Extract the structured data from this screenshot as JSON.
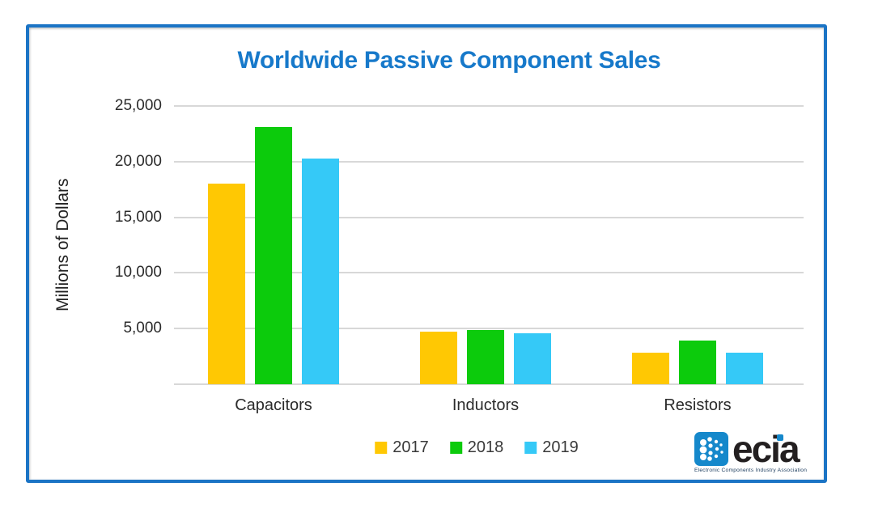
{
  "chart_data": {
    "type": "bar",
    "title": "Worldwide Passive Component Sales",
    "categories": [
      "Capacitors",
      "Inductors",
      "Resistors"
    ],
    "series": [
      {
        "name": "2017",
        "color": "#FFC803",
        "values": [
          18000,
          4700,
          2800
        ]
      },
      {
        "name": "2018",
        "color": "#0CCB0C",
        "values": [
          23100,
          4900,
          3900
        ]
      },
      {
        "name": "2019",
        "color": "#35C9F7",
        "values": [
          20300,
          4600,
          2800
        ]
      }
    ],
    "xlabel": "",
    "ylabel": "Millions of Dollars",
    "ylim": [
      0,
      25000
    ],
    "ytick_step": 5000,
    "ytick_labels": [
      "5,000",
      "10,000",
      "15,000",
      "20,000",
      "25,000"
    ],
    "grid": true,
    "legend_position": "bottom-center"
  },
  "logo": {
    "text": "ecia",
    "tagline": "Electronic Components Industry Association"
  },
  "colors": {
    "title_text": "#1779CA",
    "frame_border": "#1B74C5",
    "gridline": "#D8D8D8",
    "axis_text": "#2b2b2b",
    "logo_blue": "#1588CB",
    "logo_text": "#231F20"
  }
}
